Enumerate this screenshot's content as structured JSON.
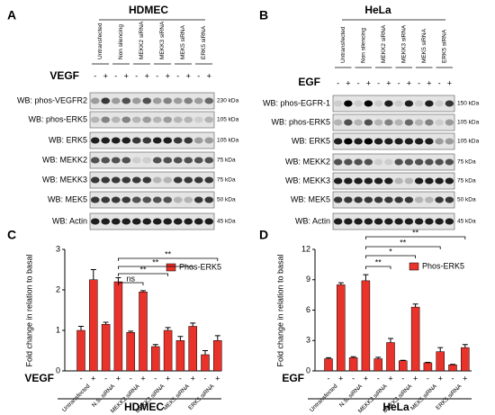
{
  "blots": [
    {
      "letter": "A",
      "title": "HDMEC",
      "treatment": "VEGF",
      "levels": [
        "-",
        "+"
      ],
      "lanes": [
        "Untransfected",
        "Non silencing",
        "MEKK2 siRNA",
        "MEKK3 siRNA",
        "MEK5 siRNA",
        "ERK5 siRNA"
      ],
      "rows": [
        {
          "label": "WB: phos-VEGFR2",
          "kda": "230 kDa"
        },
        {
          "label": "WB: phos-ERK5",
          "kda": "105 kDa"
        },
        {
          "label": "WB: ERK5",
          "kda": "105 kDa"
        },
        {
          "label": "WB: MEKK2",
          "kda": "75 kDa"
        },
        {
          "label": "WB: MEKK3",
          "kda": "75 kDa"
        },
        {
          "label": "WB: MEK5",
          "kda": "50 kDa"
        },
        {
          "label": "WB: Actin",
          "kda": "45 kDa"
        }
      ]
    },
    {
      "letter": "B",
      "title": "HeLa",
      "treatment": "EGF",
      "levels": [
        "-",
        "+"
      ],
      "lanes": [
        "Untransfected",
        "Non silencing",
        "MEKK2 siRNA",
        "MEKK3 siRNA",
        "MEK5 siRNA",
        "ERK5 siRNA"
      ],
      "rows": [
        {
          "label": "WB: phos-EGFR-1",
          "kda": "150 kDa"
        },
        {
          "label": "WB: phos-ERK5",
          "kda": "105 kDa"
        },
        {
          "label": "WB: ERK5",
          "kda": "105 kDa"
        },
        {
          "label": "WB: MEKK2",
          "kda": "75 kDa"
        },
        {
          "label": "WB: MEKK3",
          "kda": "75 kDa"
        },
        {
          "label": "WB: MEK5",
          "kda": "50 kDa"
        },
        {
          "label": "WB: Actin",
          "kda": "45 kDa"
        }
      ]
    }
  ],
  "chart_data": [
    {
      "type": "bar",
      "letter": "C",
      "ylabel": "Fold change in relation to basal",
      "footer": "HDMEC",
      "treatment": "VEGF",
      "levels": [
        "-",
        "+"
      ],
      "groups": [
        "Untransfected",
        "N.S. siRNA",
        "MEKK2 siRNA",
        "MEKK3 siRNA",
        "MEK5 siRNA",
        "ERK5 siRNA"
      ],
      "ylim": [
        0,
        3
      ],
      "yticks": [
        0,
        1,
        2,
        3
      ],
      "series": [
        {
          "name": "Phos-ERK5",
          "color": "#e8322a",
          "values": [
            1.0,
            2.25,
            1.15,
            2.2,
            0.95,
            1.95,
            0.6,
            1.0,
            0.75,
            1.1,
            0.4,
            0.75
          ],
          "errors": [
            0.1,
            0.25,
            0.05,
            0.1,
            0.03,
            0.03,
            0.05,
            0.07,
            0.1,
            0.08,
            0.1,
            0.12
          ]
        }
      ],
      "significance": [
        "ns",
        "**",
        "**",
        "**"
      ]
    },
    {
      "type": "bar",
      "letter": "D",
      "ylabel": "Fold change in relation to basal",
      "footer": "HeLa",
      "treatment": "EGF",
      "levels": [
        "-",
        "+"
      ],
      "groups": [
        "Untransfected",
        "N.S. siRNA",
        "MEKK2 siRNA",
        "MEKK3 siRNA",
        "MEK5 siRNA",
        "ERK5 siRNA"
      ],
      "ylim": [
        0,
        12
      ],
      "yticks": [
        0,
        3,
        6,
        9,
        12
      ],
      "series": [
        {
          "name": "Phos-ERK5",
          "color": "#e8322a",
          "values": [
            1.2,
            8.5,
            1.3,
            8.9,
            1.2,
            2.8,
            1.0,
            6.3,
            0.8,
            1.9,
            0.6,
            2.3
          ],
          "errors": [
            0.1,
            0.2,
            0.1,
            0.6,
            0.15,
            0.4,
            0.05,
            0.3,
            0.05,
            0.4,
            0.05,
            0.3
          ]
        }
      ],
      "significance": [
        "**",
        "*",
        "**",
        "**"
      ]
    }
  ]
}
